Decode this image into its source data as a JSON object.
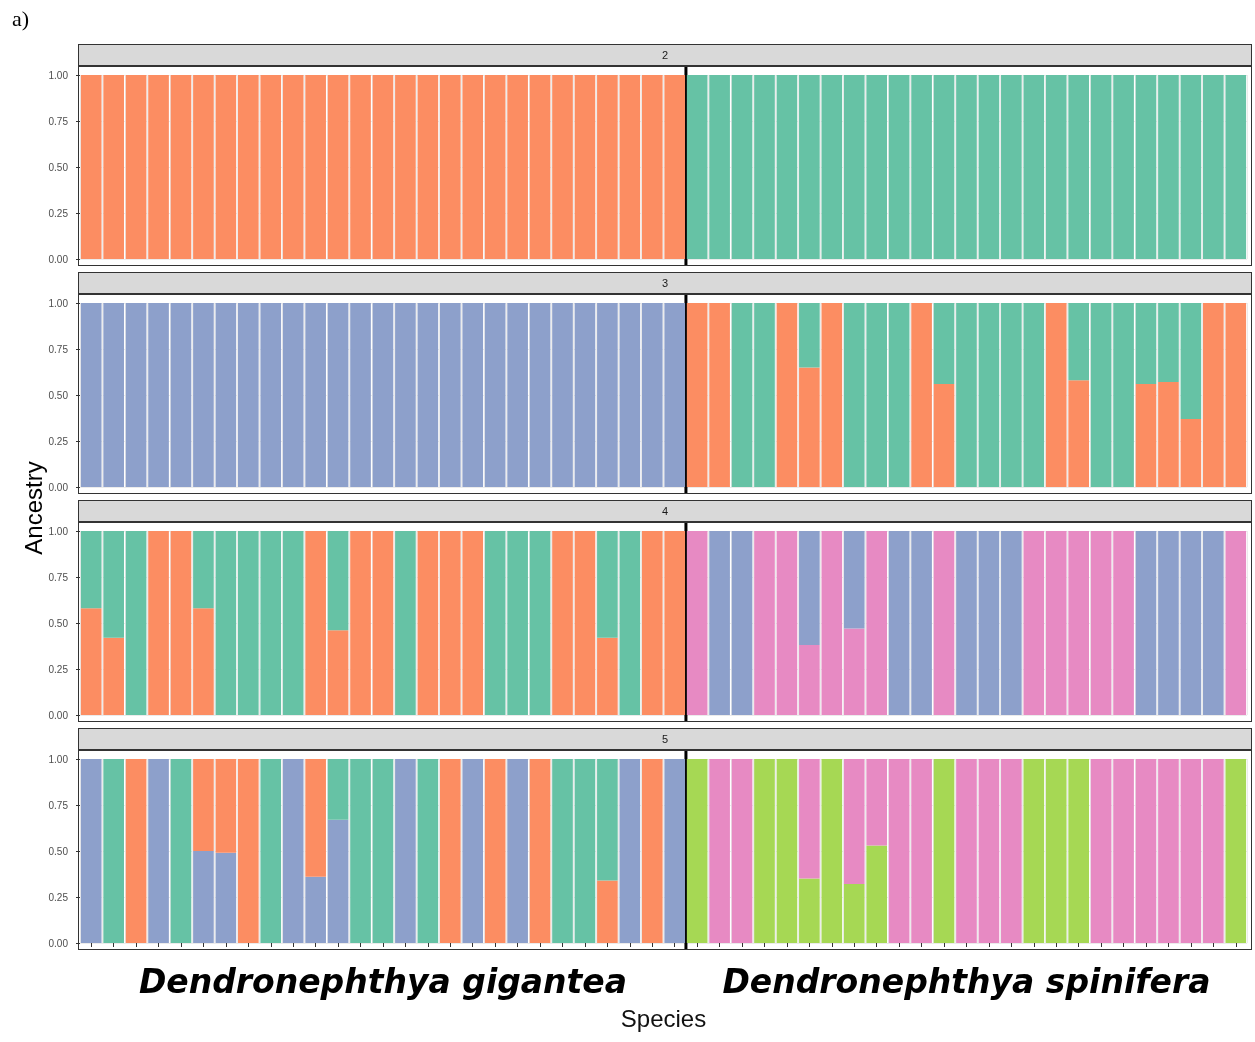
{
  "chart_data": [
    {
      "type": "bar",
      "title": "2",
      "annotations": [
        "a)"
      ],
      "stacked": true,
      "grid": true,
      "tick_labels": "y",
      "ylim": [
        0,
        1
      ],
      "yticks": [
        {
          "value": 0,
          "label": "0.00"
        },
        {
          "value": 0.25,
          "label": "0.25"
        },
        {
          "value": 0.5,
          "label": "0.50"
        },
        {
          "value": 0.75,
          "label": "0.75"
        },
        {
          "value": 1,
          "label": "1.00"
        }
      ],
      "categories": [
        null,
        null,
        null,
        null,
        null,
        null,
        null,
        null,
        null,
        null,
        null,
        null,
        null,
        null,
        null,
        null,
        null,
        null,
        null,
        null,
        null,
        null,
        null,
        null,
        null,
        null,
        null,
        null,
        null,
        null,
        null,
        null,
        null,
        null,
        null,
        null,
        null,
        null,
        null,
        null,
        null,
        null,
        null,
        null,
        null,
        null,
        null,
        null,
        null,
        null,
        null,
        null
      ],
      "series": [
        {
          "color": "#fc8d62",
          "values": [
            1,
            1,
            1,
            1,
            1,
            1,
            1,
            1,
            1,
            1,
            1,
            1,
            1,
            1,
            1,
            1,
            1,
            1,
            1,
            1,
            1,
            1,
            1,
            1,
            1,
            1,
            1,
            null,
            null,
            null,
            null,
            null,
            null,
            null,
            null,
            null,
            null,
            null,
            null,
            null,
            null,
            null,
            null,
            null,
            null,
            null,
            null,
            null,
            null,
            null,
            null,
            null
          ]
        },
        {
          "color": "#66c2a5",
          "values": [
            null,
            null,
            null,
            null,
            null,
            null,
            null,
            null,
            null,
            null,
            null,
            null,
            null,
            null,
            null,
            null,
            null,
            null,
            null,
            null,
            null,
            null,
            null,
            null,
            null,
            null,
            null,
            1,
            1,
            1,
            1,
            1,
            1,
            1,
            1,
            1,
            1,
            1,
            1,
            1,
            1,
            1,
            1,
            1,
            1,
            1,
            1,
            1,
            1,
            1,
            1,
            1
          ]
        }
      ]
    },
    {
      "type": "bar",
      "title": "3",
      "stacked": true,
      "grid": true,
      "tick_labels": "y",
      "ylim": [
        0,
        1
      ],
      "yticks": [
        {
          "value": 0,
          "label": "0.00"
        },
        {
          "value": 0.25,
          "label": "0.25"
        },
        {
          "value": 0.5,
          "label": "0.50"
        },
        {
          "value": 0.75,
          "label": "0.75"
        },
        {
          "value": 1,
          "label": "1.00"
        }
      ],
      "categories": [
        null,
        null,
        null,
        null,
        null,
        null,
        null,
        null,
        null,
        null,
        null,
        null,
        null,
        null,
        null,
        null,
        null,
        null,
        null,
        null,
        null,
        null,
        null,
        null,
        null,
        null,
        null,
        null,
        null,
        null,
        null,
        null,
        null,
        null,
        null,
        null,
        null,
        null,
        null,
        null,
        null,
        null,
        null,
        null,
        null,
        null,
        null,
        null,
        null,
        null,
        null,
        null
      ],
      "series": [
        {
          "color": "#fc8d62",
          "values": [
            null,
            null,
            null,
            null,
            null,
            null,
            null,
            null,
            null,
            null,
            null,
            null,
            null,
            null,
            null,
            null,
            null,
            null,
            null,
            null,
            null,
            null,
            null,
            null,
            null,
            null,
            null,
            1,
            1,
            null,
            null,
            1,
            0.65,
            1,
            null,
            null,
            null,
            1,
            0.56,
            null,
            null,
            null,
            null,
            1,
            0.58,
            null,
            null,
            0.56,
            0.57,
            0.37,
            1,
            1
          ]
        },
        {
          "color": "#66c2a5",
          "values": [
            null,
            null,
            null,
            null,
            null,
            null,
            null,
            null,
            null,
            null,
            null,
            null,
            null,
            null,
            null,
            null,
            null,
            null,
            null,
            null,
            null,
            null,
            null,
            null,
            null,
            null,
            null,
            null,
            null,
            1,
            1,
            null,
            0.35,
            null,
            1,
            1,
            1,
            null,
            0.44,
            1,
            1,
            1,
            1,
            null,
            0.42,
            1,
            1,
            0.44,
            0.43,
            0.63,
            null,
            null
          ]
        },
        {
          "color": "#8da0cb",
          "values": [
            1,
            1,
            1,
            1,
            1,
            1,
            1,
            1,
            1,
            1,
            1,
            1,
            1,
            1,
            1,
            1,
            1,
            1,
            1,
            1,
            1,
            1,
            1,
            1,
            1,
            1,
            1,
            null,
            null,
            null,
            null,
            null,
            null,
            null,
            null,
            null,
            null,
            null,
            null,
            null,
            null,
            null,
            null,
            null,
            null,
            null,
            null,
            null,
            null,
            null,
            null,
            null
          ]
        }
      ]
    },
    {
      "type": "bar",
      "title": "4",
      "ylabel": "Ancestry",
      "stacked": true,
      "grid": true,
      "tick_labels": "y",
      "ylim": [
        0,
        1
      ],
      "yticks": [
        {
          "value": 0,
          "label": "0.00"
        },
        {
          "value": 0.25,
          "label": "0.25"
        },
        {
          "value": 0.5,
          "label": "0.50"
        },
        {
          "value": 0.75,
          "label": "0.75"
        },
        {
          "value": 1,
          "label": "1.00"
        }
      ],
      "categories": [
        null,
        null,
        null,
        null,
        null,
        null,
        null,
        null,
        null,
        null,
        null,
        null,
        null,
        null,
        null,
        null,
        null,
        null,
        null,
        null,
        null,
        null,
        null,
        null,
        null,
        null,
        null,
        null,
        null,
        null,
        null,
        null,
        null,
        null,
        null,
        null,
        null,
        null,
        null,
        null,
        null,
        null,
        null,
        null,
        null,
        null,
        null,
        null,
        null,
        null,
        null,
        null
      ],
      "series": [
        {
          "color": "#fc8d62",
          "values": [
            0.58,
            0.42,
            null,
            1,
            1,
            0.58,
            null,
            null,
            null,
            null,
            1,
            0.46,
            1,
            1,
            null,
            1,
            1,
            1,
            null,
            null,
            null,
            1,
            1,
            0.42,
            null,
            1,
            1,
            null,
            null,
            null,
            null,
            null,
            null,
            null,
            null,
            null,
            null,
            null,
            null,
            null,
            null,
            null,
            null,
            null,
            null,
            null,
            null,
            null,
            null,
            null,
            null,
            null
          ]
        },
        {
          "color": "#66c2a5",
          "values": [
            0.42,
            0.58,
            1,
            null,
            null,
            0.42,
            1,
            1,
            1,
            1,
            null,
            0.54,
            null,
            null,
            1,
            null,
            null,
            null,
            1,
            1,
            1,
            null,
            null,
            0.58,
            1,
            null,
            null,
            null,
            null,
            null,
            null,
            null,
            null,
            null,
            null,
            null,
            null,
            null,
            null,
            null,
            null,
            null,
            null,
            null,
            null,
            null,
            null,
            null,
            null,
            null,
            null,
            null
          ]
        },
        {
          "color": "#e78ac3",
          "values": [
            null,
            null,
            null,
            null,
            null,
            null,
            null,
            null,
            null,
            null,
            null,
            null,
            null,
            null,
            null,
            null,
            null,
            null,
            null,
            null,
            null,
            null,
            null,
            null,
            null,
            null,
            null,
            1,
            null,
            null,
            1,
            1,
            0.38,
            1,
            0.47,
            1,
            null,
            null,
            1,
            null,
            null,
            null,
            1,
            1,
            1,
            1,
            1,
            null,
            null,
            null,
            null,
            1
          ]
        },
        {
          "color": "#8da0cb",
          "values": [
            null,
            null,
            null,
            null,
            null,
            null,
            null,
            null,
            null,
            null,
            null,
            null,
            null,
            null,
            null,
            null,
            null,
            null,
            null,
            null,
            null,
            null,
            null,
            null,
            null,
            null,
            null,
            null,
            1,
            1,
            null,
            null,
            0.62,
            null,
            0.53,
            null,
            1,
            1,
            null,
            1,
            1,
            1,
            null,
            null,
            null,
            null,
            null,
            1,
            1,
            1,
            1,
            null
          ]
        }
      ]
    },
    {
      "type": "bar",
      "title": "5",
      "xlabel": "Species",
      "annotations": [
        "Dendronephthya gigantea",
        "Dendronephthya spinifera"
      ],
      "stacked": true,
      "grid": true,
      "tick_labels": "y",
      "ylim": [
        0,
        1
      ],
      "yticks": [
        {
          "value": 0,
          "label": "0.00"
        },
        {
          "value": 0.25,
          "label": "0.25"
        },
        {
          "value": 0.5,
          "label": "0.50"
        },
        {
          "value": 0.75,
          "label": "0.75"
        },
        {
          "value": 1,
          "label": "1.00"
        }
      ],
      "categories": [
        null,
        null,
        null,
        null,
        null,
        null,
        null,
        null,
        null,
        null,
        null,
        null,
        null,
        null,
        null,
        null,
        null,
        null,
        null,
        null,
        null,
        null,
        null,
        null,
        null,
        null,
        null,
        null,
        null,
        null,
        null,
        null,
        null,
        null,
        null,
        null,
        null,
        null,
        null,
        null,
        null,
        null,
        null,
        null,
        null,
        null,
        null,
        null,
        null,
        null,
        null,
        null
      ],
      "series": [
        {
          "color": "#8da0cb",
          "values": [
            1,
            null,
            null,
            1,
            null,
            0.5,
            0.49,
            null,
            null,
            1,
            0.36,
            0.67,
            null,
            null,
            1,
            null,
            null,
            1,
            null,
            1,
            null,
            null,
            null,
            null,
            1,
            null,
            1,
            null,
            null,
            null,
            null,
            null,
            null,
            null,
            null,
            null,
            null,
            null,
            null,
            null,
            null,
            null,
            null,
            null,
            null,
            null,
            null,
            null,
            null,
            null,
            null,
            null
          ]
        },
        {
          "color": "#fc8d62",
          "values": [
            null,
            null,
            1,
            null,
            null,
            0.5,
            0.51,
            1,
            null,
            null,
            0.64,
            null,
            null,
            null,
            null,
            null,
            1,
            null,
            1,
            null,
            1,
            null,
            null,
            0.34,
            null,
            1,
            null,
            null,
            null,
            null,
            null,
            null,
            null,
            null,
            null,
            null,
            null,
            null,
            null,
            null,
            null,
            null,
            null,
            null,
            null,
            null,
            null,
            null,
            null,
            null,
            null,
            null
          ]
        },
        {
          "color": "#66c2a5",
          "values": [
            null,
            1,
            null,
            null,
            1,
            null,
            null,
            null,
            1,
            null,
            null,
            0.33,
            1,
            1,
            null,
            1,
            null,
            null,
            null,
            null,
            null,
            1,
            1,
            0.66,
            null,
            null,
            null,
            null,
            null,
            null,
            null,
            null,
            null,
            null,
            null,
            null,
            null,
            null,
            null,
            null,
            null,
            null,
            null,
            null,
            null,
            null,
            null,
            null,
            null,
            null,
            null,
            null
          ]
        },
        {
          "color": "#a6d854",
          "values": [
            null,
            null,
            null,
            null,
            null,
            null,
            null,
            null,
            null,
            null,
            null,
            null,
            null,
            null,
            null,
            null,
            null,
            null,
            null,
            null,
            null,
            null,
            null,
            null,
            null,
            null,
            null,
            1,
            null,
            null,
            1,
            1,
            0.35,
            1,
            0.32,
            0.53,
            null,
            null,
            1,
            null,
            null,
            null,
            1,
            1,
            1,
            null,
            null,
            null,
            null,
            null,
            null,
            1
          ]
        },
        {
          "color": "#e78ac3",
          "values": [
            null,
            null,
            null,
            null,
            null,
            null,
            null,
            null,
            null,
            null,
            null,
            null,
            null,
            null,
            null,
            null,
            null,
            null,
            null,
            null,
            null,
            null,
            null,
            null,
            null,
            null,
            null,
            null,
            1,
            1,
            null,
            null,
            0.65,
            null,
            0.68,
            0.47,
            1,
            1,
            null,
            1,
            1,
            1,
            null,
            null,
            null,
            1,
            1,
            1,
            1,
            1,
            1,
            null
          ]
        }
      ]
    }
  ]
}
